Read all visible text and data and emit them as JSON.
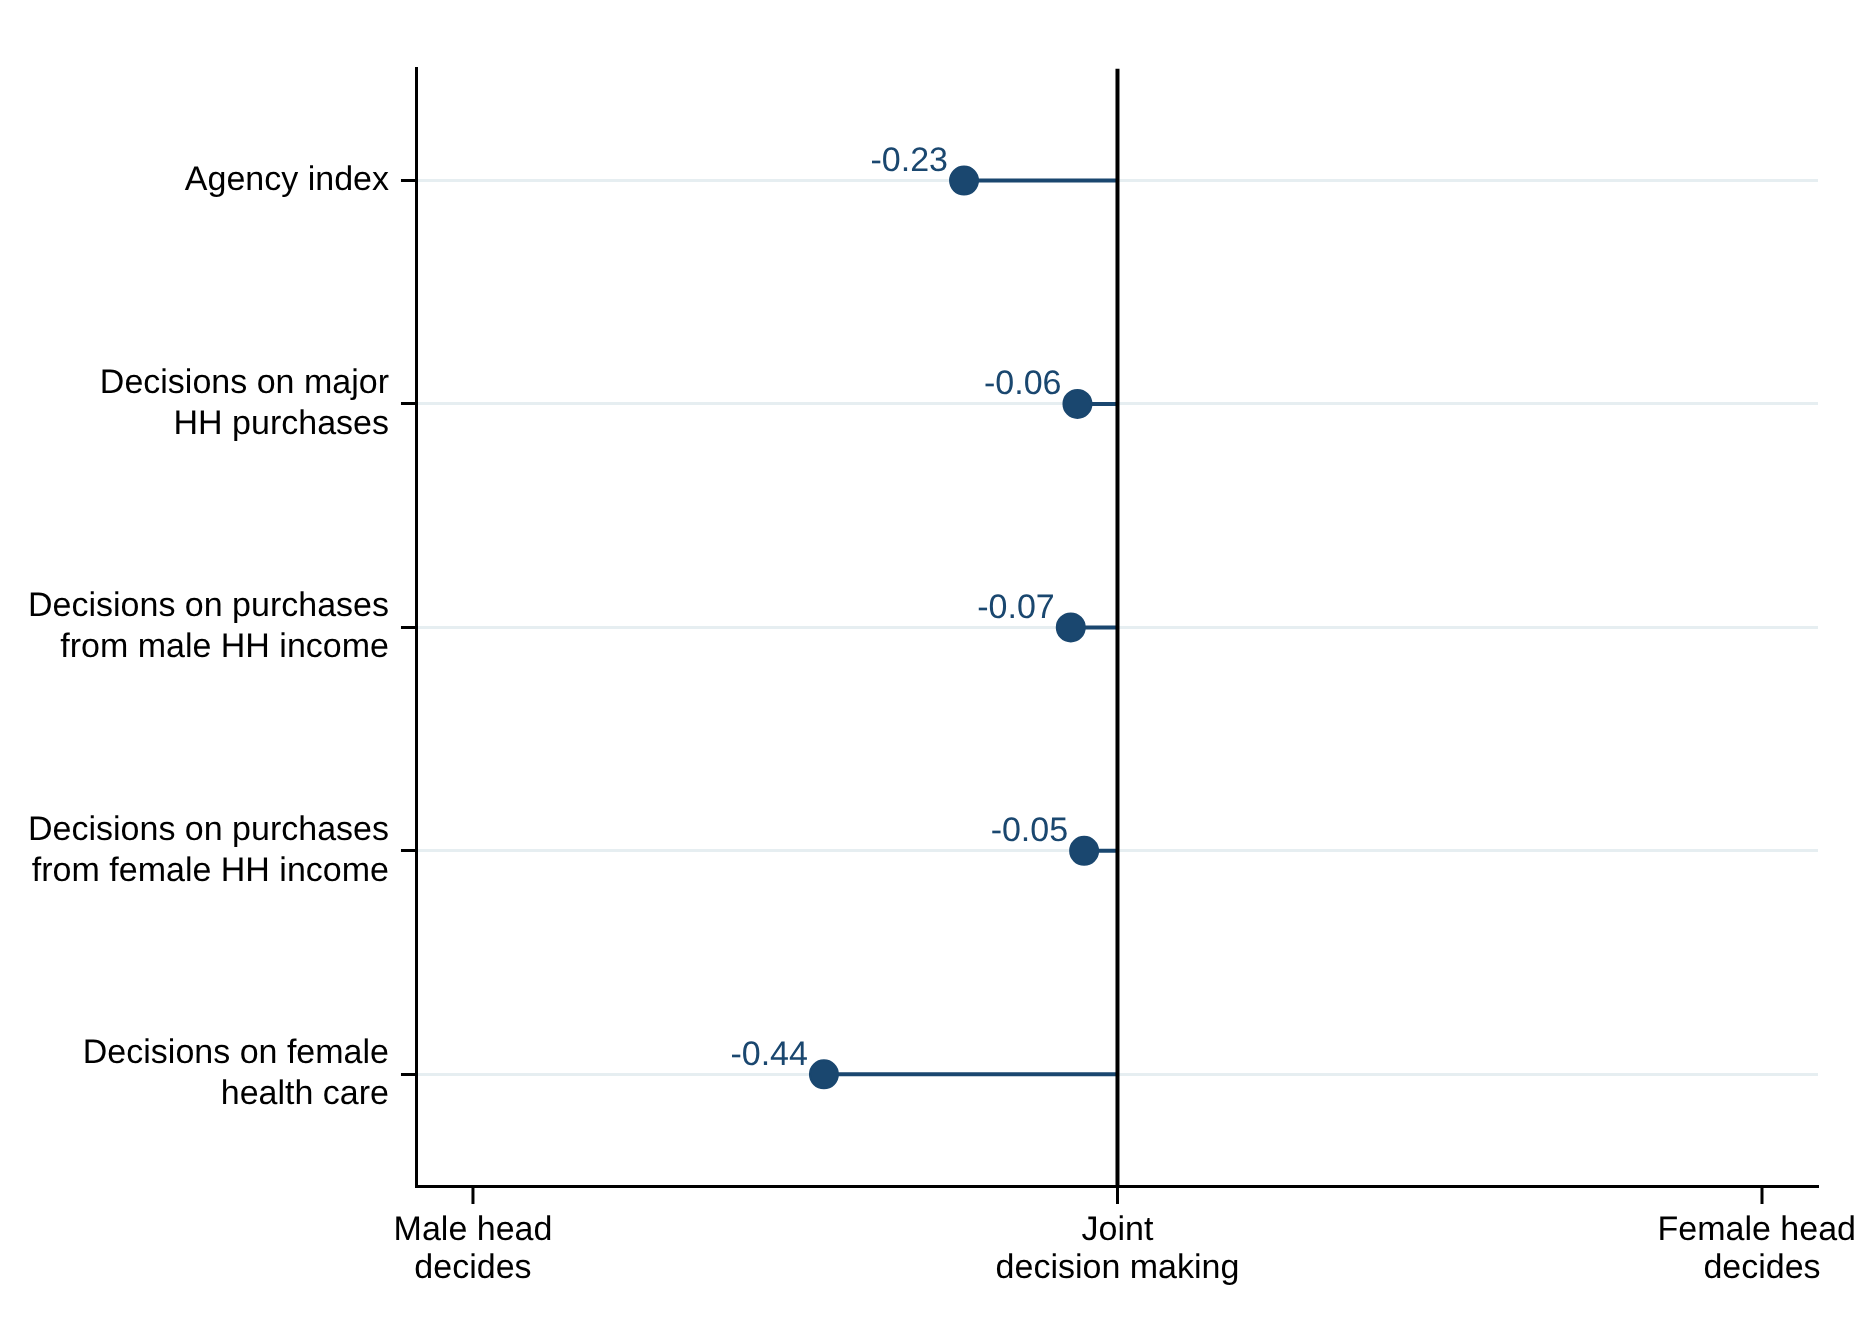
{
  "chart_data": {
    "type": "lollipop",
    "orientation": "horizontal",
    "categories": [
      "Agency index",
      "Decisions on major\nHH purchases",
      "Decisions on purchases\nfrom male HH income",
      "Decisions on purchases\nfrom female HH income",
      "Decisions on female\nhealth care"
    ],
    "values": [
      -0.23,
      -0.06,
      -0.07,
      -0.05,
      -0.44
    ],
    "color": "#1a476f",
    "data_labels": true,
    "marker": "circle",
    "xlim": [
      -1.05,
      1.05
    ],
    "tick_labels": "y",
    "annotations": [
      "Male head\ndecides",
      "Joint\ndecision making",
      "Female head\ndecides"
    ],
    "ref_lines": [
      {
        "axis": "x",
        "value": 0,
        "color": "#000000"
      }
    ],
    "grid": "y",
    "legend": false
  }
}
